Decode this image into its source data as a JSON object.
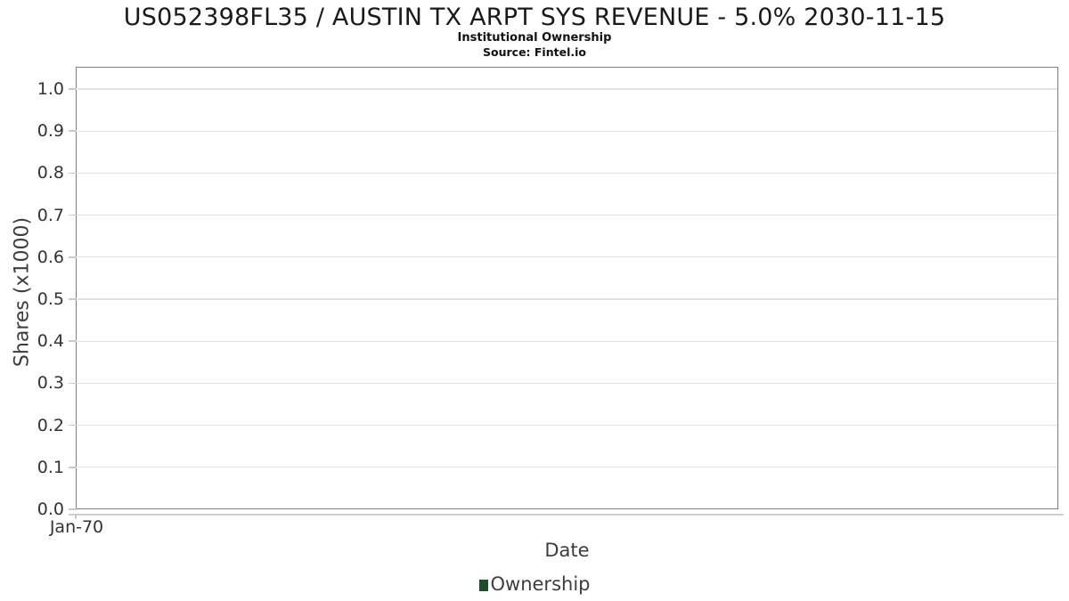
{
  "header": {
    "title": "US052398FL35 / AUSTIN TX ARPT SYS REVENUE - 5.0% 2030-11-15",
    "subtitle": "Institutional Ownership",
    "source": "Source: Fintel.io"
  },
  "chart_data": {
    "type": "bar",
    "title": "US052398FL35 / AUSTIN TX ARPT SYS REVENUE - 5.0% 2030-11-15",
    "subtitle": "Institutional Ownership",
    "source": "Source: Fintel.io",
    "xlabel": "Date",
    "ylabel": "Shares (x1000)",
    "x_tick_labels": [
      "Jan-70"
    ],
    "x_tick_fractions": [
      0
    ],
    "y_ticks": [
      0.0,
      0.1,
      0.2,
      0.3,
      0.4,
      0.5,
      0.6,
      0.7,
      0.8,
      0.9,
      1.0
    ],
    "y_tick_decimals": 1,
    "ylim": [
      0,
      1.053
    ],
    "grid": "horizontal-only",
    "legend": {
      "position": "bottom-center",
      "entries": [
        {
          "label": "Ownership",
          "color": "#1e4d2b"
        }
      ]
    },
    "series": [
      {
        "name": "Ownership",
        "x": [],
        "values": []
      }
    ]
  },
  "colors": {
    "legend_ownership": "#1e4d2b",
    "plot_border": "#7e7e7e",
    "gridline": "#e1e1e1",
    "background": "#ffffff"
  }
}
